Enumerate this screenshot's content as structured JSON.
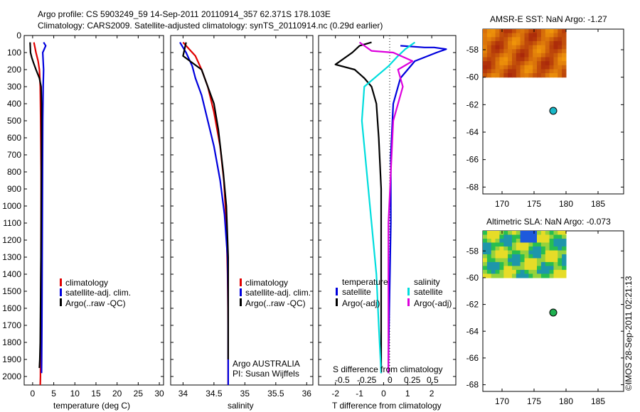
{
  "header": {
    "line1": "Argo profile: CS 5903249_59 14-Sep-2011 20110914_357 62.371S 178.103E",
    "line2": "Climatology: CARS2009. Satellite-adjusted climatology: synTS_20110914.nc (0.29d earlier)"
  },
  "credit": "©IMOS 28-Sep-2011 02:21:13",
  "colors": {
    "climatology": "#e00000",
    "satellite": "#0000dd",
    "argo": "#000000",
    "satellite_s": "#00dddd",
    "argo_s": "#dd00dd"
  },
  "chart_data": [
    {
      "type": "line",
      "xlabel": "temperature (deg C)",
      "ylim": [
        2050,
        0
      ],
      "yticks": [
        0,
        100,
        200,
        300,
        400,
        500,
        600,
        700,
        800,
        900,
        1000,
        1100,
        1200,
        1300,
        1400,
        1500,
        1600,
        1700,
        1800,
        1900,
        2000
      ],
      "xlim": [
        -2,
        31
      ],
      "xticks": [
        0,
        5,
        10,
        15,
        20,
        25,
        30
      ],
      "legend": [
        "climatology",
        "satellite-adj. clim.",
        "Argo(..raw -QC)"
      ],
      "series": [
        {
          "name": "climatology",
          "color": "#e00000",
          "x": [
            0.3,
            0.8,
            1.3,
            1.6,
            1.8,
            1.9,
            2.0,
            2.0,
            1.95,
            1.9,
            1.85,
            1.8
          ],
          "y": [
            40,
            100,
            150,
            200,
            300,
            500,
            800,
            1100,
            1400,
            1700,
            2000,
            2050
          ]
        },
        {
          "name": "satellite-adj. clim.",
          "color": "#0000dd",
          "x": [
            2.6,
            3.1,
            2.4,
            2.6,
            2.5,
            2.4,
            2.35,
            2.3,
            2.25,
            2.2,
            2.15,
            2.1
          ],
          "y": [
            40,
            60,
            100,
            200,
            300,
            500,
            800,
            1100,
            1400,
            1700,
            1900,
            1980
          ]
        },
        {
          "name": "Argo(..raw -QC)",
          "color": "#000000",
          "x": [
            -0.6,
            -0.5,
            -0.2,
            0.2,
            0.8,
            1.6,
            2.0,
            2.1,
            2.1,
            2.05,
            2.0,
            1.9,
            1.8,
            1.7,
            1.6
          ],
          "y": [
            40,
            100,
            130,
            160,
            200,
            250,
            300,
            400,
            600,
            900,
            1200,
            1500,
            1800,
            1900,
            1950
          ]
        }
      ]
    },
    {
      "type": "line",
      "xlabel": "salinity",
      "ylim": [
        2050,
        0
      ],
      "xlim": [
        33.8,
        36.1
      ],
      "xticks": [
        34,
        34.5,
        35,
        35.5,
        36
      ],
      "legend": [
        "climatology",
        "satellite-adj. clim.",
        "Argo(..raw -QC)"
      ],
      "annotation": [
        "Argo AUSTRALIA",
        "PI: Susan Wijffels"
      ],
      "series": [
        {
          "name": "climatology",
          "color": "#e00000",
          "x": [
            34.0,
            34.1,
            34.2,
            34.3,
            34.4,
            34.5,
            34.6,
            34.66,
            34.7,
            34.72,
            34.73,
            34.73
          ],
          "y": [
            40,
            80,
            120,
            200,
            300,
            450,
            650,
            850,
            1100,
            1400,
            1700,
            2050
          ]
        },
        {
          "name": "satellite-adj. clim.",
          "color": "#0000dd",
          "x": [
            33.95,
            34.05,
            34.15,
            34.2,
            34.3,
            34.4,
            34.5,
            34.6,
            34.67,
            34.72,
            34.73,
            34.73
          ],
          "y": [
            40,
            100,
            180,
            250,
            350,
            500,
            650,
            850,
            1050,
            1300,
            1600,
            2050
          ]
        },
        {
          "name": "Argo(..raw -QC)",
          "color": "#000000",
          "x": [
            34.05,
            34.0,
            34.15,
            34.3,
            34.4,
            34.5,
            34.57,
            34.65,
            34.7,
            34.73,
            34.73,
            34.73
          ],
          "y": [
            40,
            120,
            160,
            200,
            300,
            400,
            550,
            800,
            1000,
            1300,
            1600,
            1900
          ]
        }
      ]
    },
    {
      "type": "line",
      "xlabel": "T difference from climatology",
      "xlabel_top": "S difference from climatology",
      "ylim": [
        2050,
        0
      ],
      "xlim": [
        -2.7,
        3.0
      ],
      "xticks": [
        -2,
        -1,
        0,
        1,
        2
      ],
      "xticks_s": [
        "-0.5",
        "-0.25",
        "0",
        "0.25",
        "0.5"
      ],
      "legend_t": {
        "title": "temperature",
        "items": [
          "satellite",
          "Argo(-adj)"
        ]
      },
      "legend_s": {
        "title": "salinity",
        "items": [
          "satellite",
          "Argo(-adj)"
        ]
      },
      "series": [
        {
          "name": "T satellite",
          "color": "#0000dd",
          "x": [
            0.7,
            1.7,
            2.1,
            2.6,
            2.2,
            1.3,
            0.7,
            0.4,
            0.3,
            0.3,
            0.25,
            0.2,
            0.2
          ],
          "y": [
            60,
            70,
            70,
            80,
            100,
            150,
            250,
            400,
            700,
            1100,
            1500,
            1900,
            1980
          ]
        },
        {
          "name": "T Argo(-adj)",
          "color": "#000000",
          "x": [
            -0.5,
            -1.0,
            -1.3,
            -2.0,
            -1.2,
            -0.8,
            -0.5,
            -0.3,
            -0.2,
            -0.1,
            -0.1,
            -0.1,
            -0.1
          ],
          "y": [
            40,
            60,
            100,
            170,
            200,
            250,
            300,
            400,
            600,
            900,
            1300,
            1700,
            1980
          ]
        },
        {
          "name": "S satellite",
          "color": "#00dddd",
          "x": [
            1.3,
            0.9,
            0.6,
            0.2,
            -0.3,
            -0.8,
            -0.9,
            -0.7,
            -0.5,
            -0.3,
            -0.2,
            -0.1
          ],
          "y": [
            40,
            80,
            120,
            180,
            240,
            300,
            500,
            800,
            1100,
            1400,
            1700,
            1980
          ]
        },
        {
          "name": "S Argo(-adj)",
          "color": "#dd00dd",
          "x": [
            -1.0,
            -0.5,
            0.4,
            1.2,
            0.6,
            0.8,
            0.4,
            0.3,
            0.2,
            0.2
          ],
          "y": [
            40,
            90,
            100,
            150,
            200,
            300,
            500,
            800,
            1100,
            1980
          ]
        }
      ]
    },
    {
      "type": "heatmap",
      "title": "AMSR-E SST: NaN Argo: -1.27",
      "xlim": [
        167,
        189
      ],
      "xticks": [
        170,
        175,
        180,
        185
      ],
      "ylim": [
        -68.5,
        -56.5
      ],
      "yticks": [
        -58,
        -60,
        -62,
        -64,
        -66,
        -68
      ],
      "marker": {
        "x": 178.1,
        "y": -62.37,
        "color": "#18b8c8"
      },
      "grid_region": {
        "lon": [
          167,
          180
        ],
        "lat": [
          -60,
          -56.5
        ]
      }
    },
    {
      "type": "heatmap",
      "title": "Altimetric SLA: NaN Argo: -0.073",
      "xlim": [
        167,
        189
      ],
      "xticks": [
        170,
        175,
        180,
        185
      ],
      "ylim": [
        -68.5,
        -56.5
      ],
      "yticks": [
        -58,
        -60,
        -62,
        -64,
        -66,
        -68
      ],
      "marker": {
        "x": 178.1,
        "y": -62.37,
        "color": "#1fb050"
      },
      "grid_region": {
        "lon": [
          167,
          180
        ],
        "lat": [
          -60,
          -56.5
        ]
      }
    }
  ]
}
